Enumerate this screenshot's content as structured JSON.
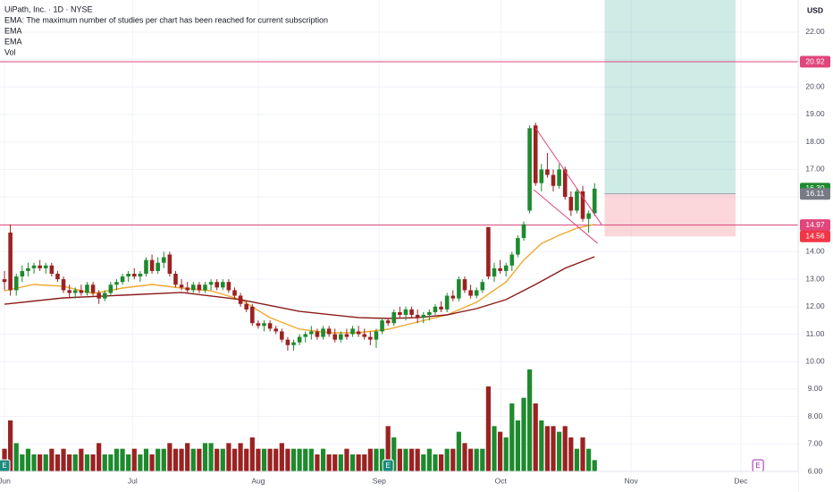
{
  "chart_data": {
    "type": "candlestick",
    "title": "UiPath, Inc. · 1D · NYSE",
    "notice": "EMA: The maximum number of studies per chart has been reached for current subscription",
    "volume_label": "Vol",
    "currency": "USD",
    "up_color": "#1e8a2e",
    "down_color": "#9b2222",
    "x": [
      0,
      1,
      2,
      3,
      4,
      5,
      6,
      7,
      8,
      9,
      10,
      11,
      12,
      13,
      14,
      15,
      16,
      17,
      18,
      19,
      20,
      21,
      22,
      23,
      24,
      25,
      26,
      27,
      28,
      29,
      30,
      31,
      32,
      33,
      34,
      35,
      36,
      37,
      38,
      39,
      40,
      41,
      42,
      43,
      44,
      45,
      46,
      47,
      48,
      49,
      50,
      51,
      52,
      53,
      54,
      55,
      56,
      57,
      58,
      59,
      60,
      61,
      62,
      63,
      64,
      65,
      66,
      67,
      68,
      69,
      70,
      71,
      72,
      73,
      74,
      75,
      76,
      77,
      78,
      79,
      80,
      81,
      82,
      83,
      84,
      85,
      86,
      87,
      88,
      89,
      90,
      91,
      92,
      93,
      94,
      95,
      96,
      97,
      98,
      99,
      100
    ],
    "open": [
      13.0,
      14.7,
      12.6,
      13.1,
      13.3,
      13.4,
      13.5,
      13.4,
      13.5,
      13.2,
      13.0,
      12.6,
      12.5,
      12.6,
      12.5,
      12.8,
      12.5,
      12.3,
      12.5,
      12.8,
      12.9,
      13.1,
      13.2,
      13.1,
      13.2,
      13.7,
      13.3,
      13.6,
      13.9,
      13.2,
      12.8,
      12.7,
      12.6,
      12.8,
      12.6,
      12.8,
      12.9,
      12.7,
      12.9,
      12.6,
      12.4,
      12.1,
      12.0,
      11.4,
      11.3,
      11.4,
      11.2,
      11.1,
      10.8,
      10.6,
      10.7,
      10.9,
      11.0,
      11.1,
      10.9,
      11.2,
      11.0,
      10.8,
      11.0,
      11.0,
      11.1,
      11.0,
      10.9,
      10.8,
      11.1,
      11.5,
      11.4,
      11.8,
      11.7,
      11.9,
      11.7,
      11.6,
      11.7,
      11.8,
      12.0,
      11.9,
      12.4,
      12.3,
      13.0,
      12.6,
      12.4,
      12.6,
      14.9,
      13.1,
      13.4,
      13.3,
      13.5,
      13.9,
      14.5,
      15.5,
      18.6,
      16.5,
      17.0,
      16.8,
      16.4,
      17.0,
      16.0,
      15.5,
      16.2,
      15.2,
      15.4
    ],
    "high": [
      13.3,
      15.0,
      13.2,
      13.5,
      13.6,
      13.6,
      13.7,
      13.6,
      13.6,
      13.3,
      13.1,
      12.8,
      12.7,
      12.8,
      12.9,
      12.9,
      12.6,
      12.6,
      12.9,
      13.0,
      13.2,
      13.3,
      13.4,
      13.3,
      13.8,
      13.9,
      13.8,
      14.0,
      14.0,
      13.3,
      13.0,
      12.9,
      12.9,
      12.9,
      12.9,
      13.0,
      13.0,
      13.0,
      13.0,
      12.7,
      12.5,
      12.2,
      12.1,
      11.5,
      11.5,
      11.5,
      11.3,
      11.2,
      10.9,
      10.8,
      11.0,
      11.1,
      11.3,
      11.2,
      11.3,
      11.3,
      11.2,
      11.1,
      11.2,
      11.3,
      11.3,
      11.2,
      11.1,
      11.2,
      11.6,
      11.6,
      11.9,
      12.0,
      12.0,
      12.0,
      11.9,
      11.8,
      11.9,
      12.1,
      12.2,
      12.5,
      12.6,
      13.1,
      13.1,
      12.8,
      12.7,
      13.0,
      14.9,
      13.6,
      13.7,
      13.6,
      14.0,
      14.6,
      15.1,
      18.6,
      18.7,
      17.2,
      17.6,
      17.0,
      17.2,
      17.1,
      16.2,
      16.3,
      16.4,
      15.5,
      16.5
    ],
    "low": [
      12.6,
      12.4,
      12.4,
      12.9,
      13.1,
      13.2,
      13.3,
      13.2,
      13.1,
      12.9,
      12.5,
      12.3,
      12.3,
      12.4,
      12.4,
      12.4,
      12.1,
      12.2,
      12.4,
      12.6,
      12.8,
      12.9,
      13.0,
      12.9,
      13.1,
      13.2,
      13.2,
      13.4,
      13.1,
      12.7,
      12.6,
      12.5,
      12.5,
      12.5,
      12.5,
      12.6,
      12.6,
      12.6,
      12.5,
      12.3,
      12.0,
      11.8,
      11.3,
      11.2,
      11.1,
      11.1,
      11.0,
      10.7,
      10.4,
      10.4,
      10.6,
      10.7,
      10.8,
      10.8,
      10.8,
      10.9,
      10.7,
      10.7,
      10.8,
      10.9,
      10.9,
      10.8,
      10.6,
      10.5,
      11.0,
      11.3,
      11.3,
      11.6,
      11.5,
      11.6,
      11.4,
      11.4,
      11.5,
      11.7,
      11.8,
      11.8,
      12.2,
      12.2,
      12.5,
      12.3,
      12.3,
      12.5,
      13.0,
      12.9,
      13.2,
      13.1,
      13.3,
      13.8,
      14.4,
      15.4,
      16.4,
      16.2,
      16.7,
      16.2,
      16.3,
      15.9,
      15.3,
      15.4,
      15.1,
      14.7,
      15.3
    ],
    "close": [
      12.9,
      12.6,
      13.1,
      13.3,
      13.4,
      13.5,
      13.4,
      13.5,
      13.2,
      13.0,
      12.6,
      12.5,
      12.6,
      12.5,
      12.8,
      12.5,
      12.3,
      12.5,
      12.8,
      12.9,
      13.1,
      13.2,
      13.1,
      13.2,
      13.7,
      13.3,
      13.6,
      13.8,
      13.2,
      12.8,
      12.7,
      12.6,
      12.8,
      12.6,
      12.8,
      12.9,
      12.7,
      12.9,
      12.6,
      12.4,
      12.1,
      11.9,
      11.4,
      11.3,
      11.4,
      11.2,
      11.1,
      10.8,
      10.6,
      10.7,
      10.9,
      11.0,
      11.1,
      10.9,
      11.2,
      11.0,
      10.8,
      11.0,
      10.9,
      11.2,
      11.0,
      10.9,
      10.8,
      11.1,
      11.5,
      11.4,
      11.8,
      11.7,
      11.9,
      11.7,
      11.6,
      11.7,
      11.8,
      12.0,
      11.9,
      12.4,
      12.3,
      13.0,
      12.6,
      12.4,
      12.6,
      12.9,
      13.1,
      13.4,
      13.3,
      13.5,
      13.9,
      14.5,
      15.0,
      18.5,
      16.5,
      17.0,
      16.8,
      16.4,
      17.0,
      16.0,
      15.5,
      16.2,
      15.2,
      15.4,
      16.3
    ],
    "volume": [
      4,
      9,
      5,
      3,
      4,
      3,
      3,
      3,
      4,
      3,
      4,
      3,
      3,
      4,
      3,
      3,
      5,
      3,
      3,
      4,
      4,
      3,
      4,
      3,
      4,
      3,
      4,
      4,
      5,
      4,
      4,
      5,
      4,
      4,
      5,
      5,
      4,
      4,
      5,
      4,
      5,
      4,
      6,
      4,
      4,
      4,
      4,
      5,
      4,
      4,
      4,
      4,
      4,
      3,
      4,
      3,
      3,
      3,
      4,
      3,
      3,
      3,
      4,
      4,
      4,
      8,
      6,
      4,
      4,
      4,
      4,
      3,
      4,
      3,
      3,
      4,
      4,
      7,
      5,
      4,
      4,
      4,
      15,
      8,
      7,
      6,
      12,
      9,
      13,
      18,
      12,
      9,
      8,
      8,
      7,
      8,
      6,
      4,
      6,
      4,
      2
    ],
    "vlim": [
      0,
      39
    ],
    "xlim": [
      -0.76,
      134.5
    ],
    "xticks": [
      {
        "value": 0,
        "label": "Jun"
      },
      {
        "value": 21.7,
        "label": "Jul"
      },
      {
        "value": 43,
        "label": "Aug"
      },
      {
        "value": 63.5,
        "label": "Sep"
      },
      {
        "value": 84.1,
        "label": "Oct"
      },
      {
        "value": 106.2,
        "label": "Nov"
      },
      {
        "value": 124.8,
        "label": "Dec"
      }
    ],
    "ylim": [
      6,
      23.17
    ],
    "yticks": [
      {
        "value": 6,
        "label": "6.00"
      },
      {
        "value": 7,
        "label": "7.00"
      },
      {
        "value": 8,
        "label": "8.00"
      },
      {
        "value": 9,
        "label": "9.00"
      },
      {
        "value": 10,
        "label": "10.00"
      },
      {
        "value": 11,
        "label": "11.00"
      },
      {
        "value": 12,
        "label": "12.00"
      },
      {
        "value": 13,
        "label": "13.00"
      },
      {
        "value": 14,
        "label": "14.00"
      },
      {
        "value": 15,
        "label": "15.00"
      },
      {
        "value": 16,
        "label": "16.00"
      },
      {
        "value": 17,
        "label": "17.00"
      },
      {
        "value": 18,
        "label": "18.00"
      },
      {
        "value": 19,
        "label": "19.00"
      },
      {
        "value": 20,
        "label": "20.00"
      },
      {
        "value": 21,
        "label": "21.00"
      },
      {
        "value": 22,
        "label": "22.00"
      }
    ],
    "grid": true,
    "ema": [
      {
        "name": "EMA",
        "color": "#f0a830",
        "x": [
          0,
          5,
          10,
          15,
          20,
          25,
          30,
          35,
          40,
          45,
          50,
          55,
          60,
          65,
          70,
          75,
          80,
          85,
          88,
          91,
          94,
          97,
          100
        ],
        "values": [
          12.58,
          12.81,
          12.74,
          12.48,
          12.68,
          12.81,
          12.68,
          12.58,
          12.26,
          11.6,
          11.18,
          11.05,
          11.05,
          11.18,
          11.44,
          11.7,
          12.16,
          12.9,
          13.7,
          14.3,
          14.6,
          14.86,
          15.0
        ]
      },
      {
        "name": "EMA",
        "color": "#8b1a1a",
        "x": [
          0,
          10,
          20,
          30,
          40,
          50,
          60,
          65,
          70,
          75,
          80,
          85,
          90,
          95,
          100
        ],
        "values": [
          12.09,
          12.32,
          12.42,
          12.52,
          12.26,
          11.83,
          11.6,
          11.57,
          11.6,
          11.7,
          11.93,
          12.26,
          12.81,
          13.4,
          13.82
        ]
      }
    ],
    "hlines": [
      {
        "value": 20.92,
        "color": "#e0457b"
      },
      {
        "value": 14.97,
        "color": "#e0457b"
      }
    ],
    "price_labels": [
      {
        "value": 16.3,
        "label": "16.30",
        "color": "#1e8a2e"
      },
      {
        "value": 16.11,
        "color": "#787b86"
      },
      {
        "value": 14.56,
        "color": "#f23645"
      }
    ],
    "position": {
      "x": [
        101.7,
        123.9
      ],
      "entry": 16.11,
      "target": 23.17,
      "stop": 14.56
    },
    "trendlines": [
      {
        "x": [
          90,
          101.2
        ],
        "y": [
          18.51,
          14.99
        ]
      },
      {
        "x": [
          89.7,
          100.5
        ],
        "y": [
          16.26,
          14.31
        ]
      }
    ],
    "events": [
      {
        "x": 0,
        "label": "E"
      },
      {
        "x": 65,
        "label": "E"
      },
      {
        "x": 127.7,
        "label": "E"
      }
    ]
  }
}
